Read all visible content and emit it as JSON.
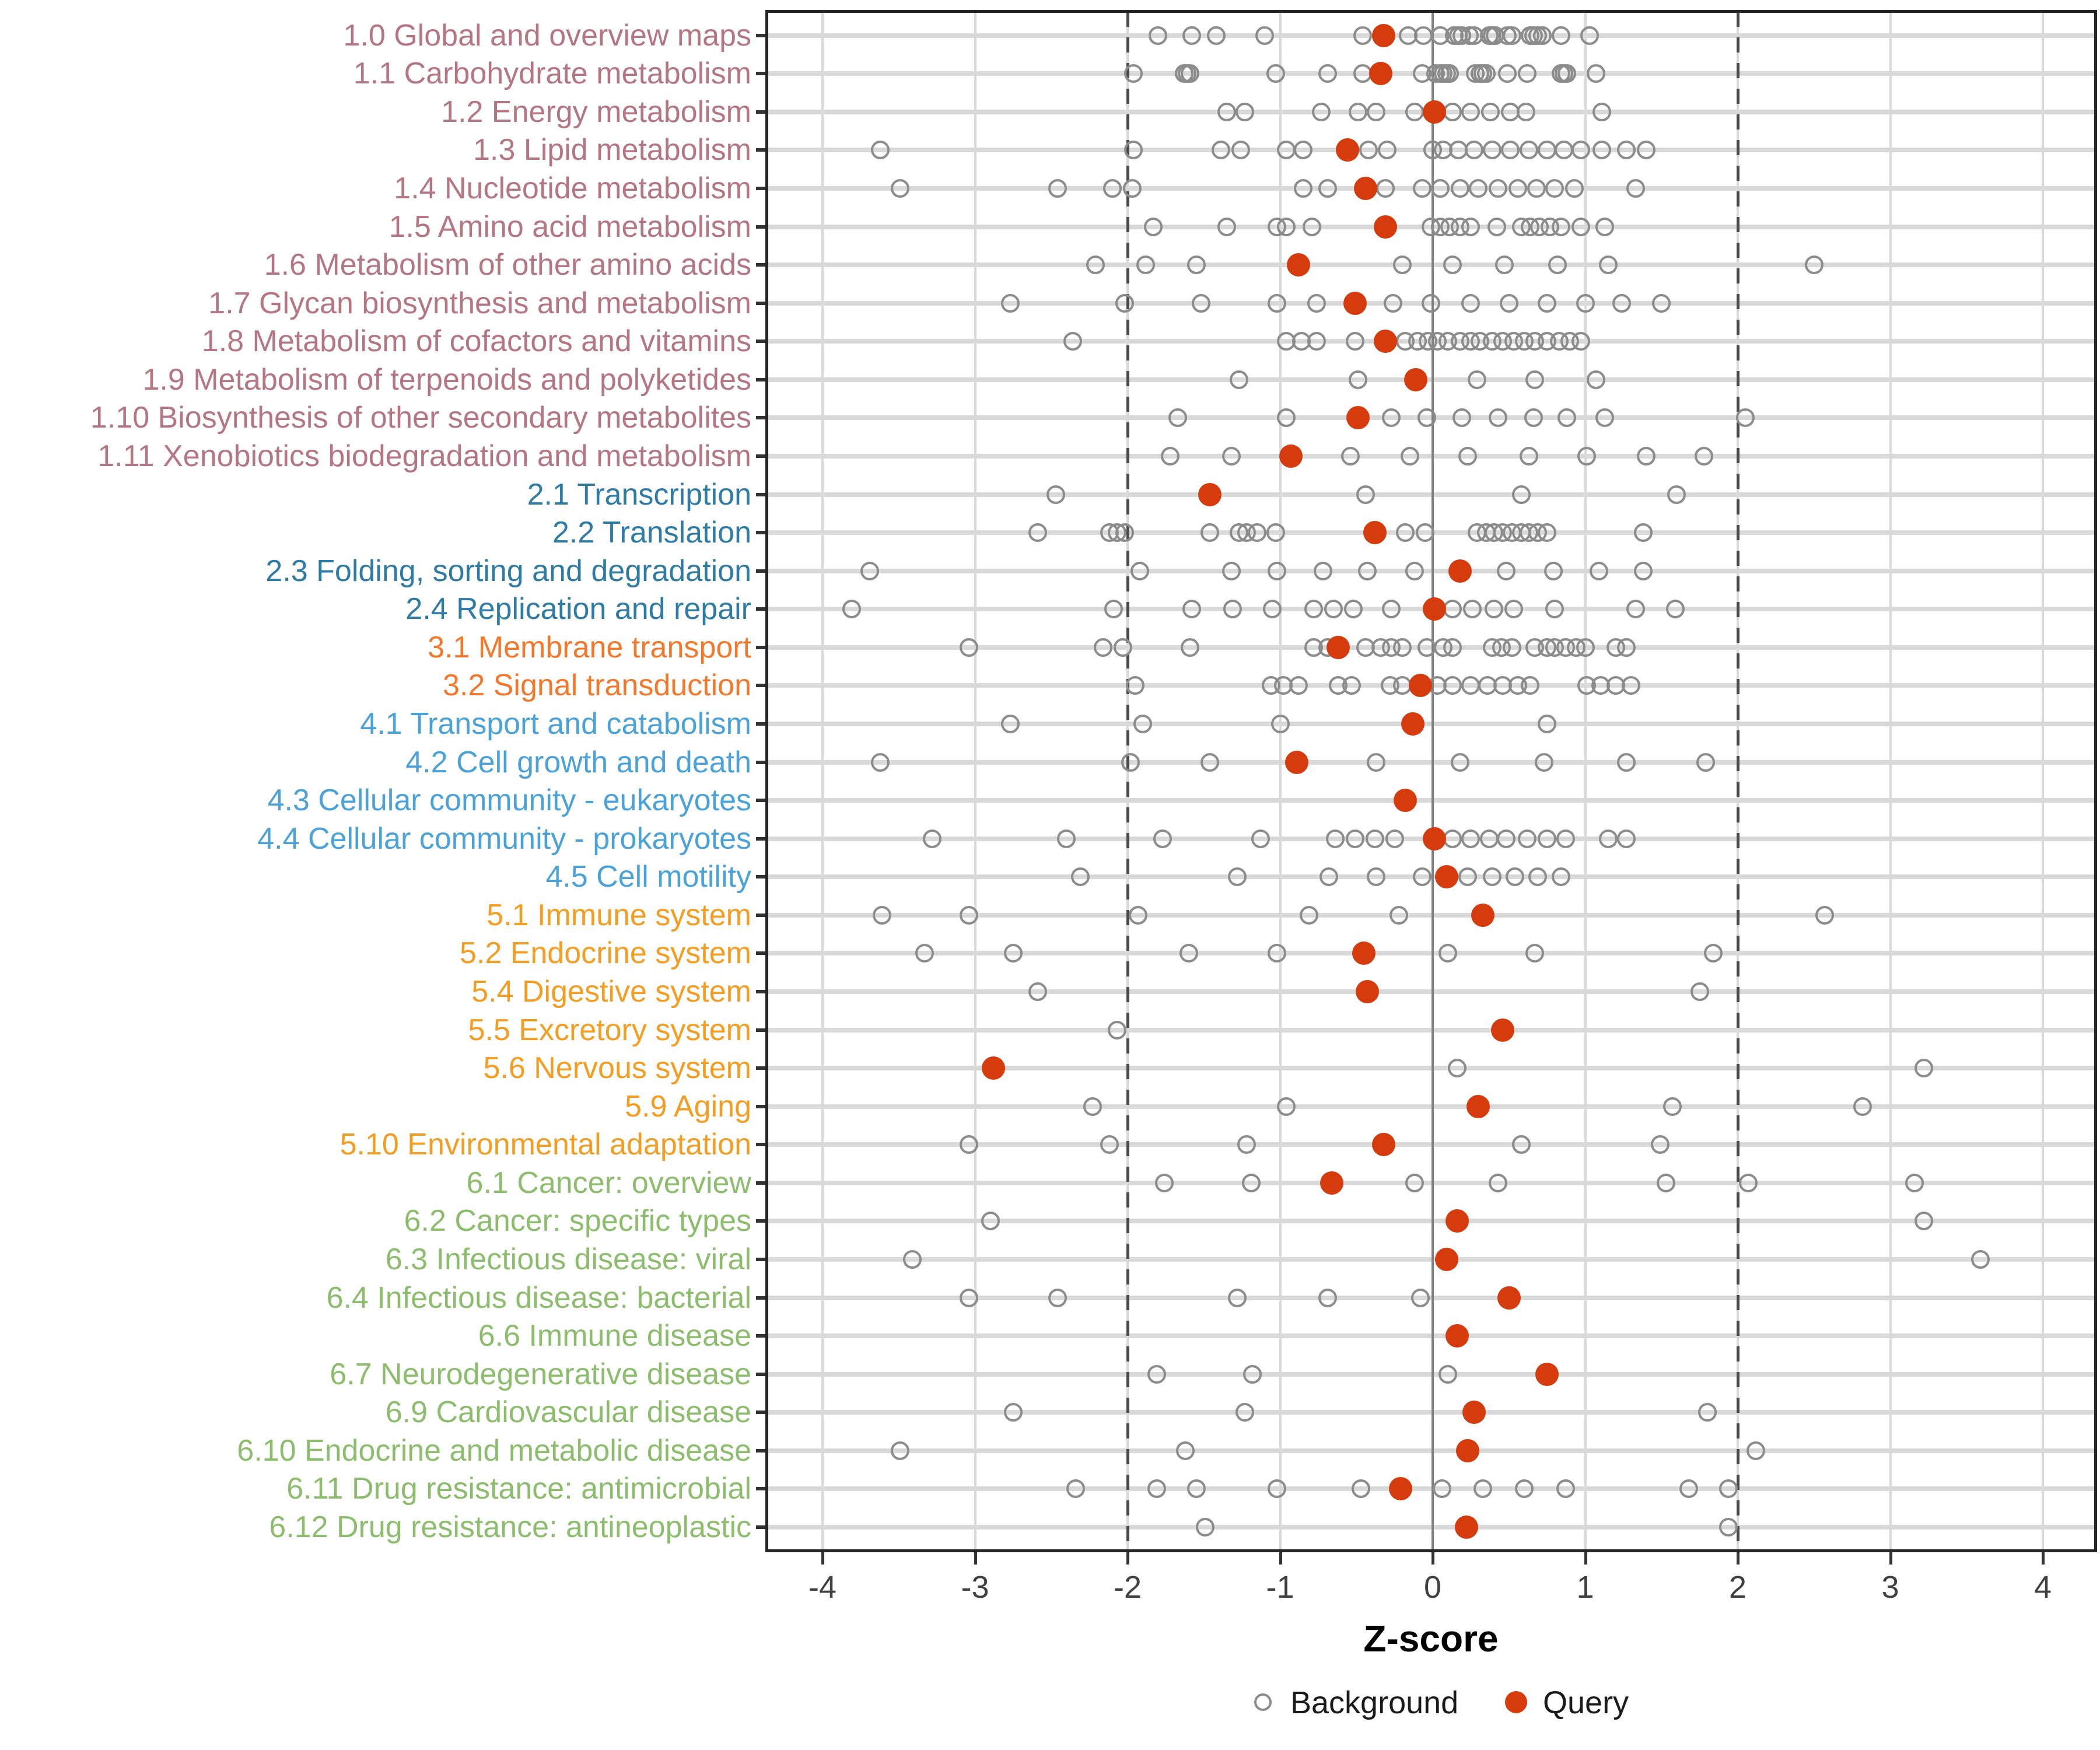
{
  "chart_data": {
    "type": "scatter",
    "title": "",
    "xlabel": "Z-score",
    "ylabel": "",
    "xlim": [
      -4.4,
      4.35
    ],
    "x_ticks": [
      -4,
      -3,
      -2,
      -1,
      0,
      1,
      2,
      3,
      4
    ],
    "grid": true,
    "reference_lines": {
      "solid_at": 0,
      "dashed_at": [
        -2,
        2
      ]
    },
    "legend_position": "bottom",
    "legend": [
      {
        "label": "Background",
        "marker": "open-gray-circle",
        "color": "#8c8c8c"
      },
      {
        "label": "Query",
        "marker": "filled-red-circle",
        "color": "#d63b0e"
      }
    ],
    "group_colors": {
      "metabolism": "#b57683",
      "genetic_information_processing": "#2e7ba5",
      "environmental_information_processing": "#f4772a",
      "cellular_processes": "#4aa2d9",
      "organismal_systems": "#f59d20",
      "human_diseases": "#8cbd6d"
    },
    "series": [
      {
        "label": "1.0 Global and overview maps",
        "group": "metabolism",
        "query": -0.32,
        "background": [
          -1.8,
          -1.58,
          -1.42,
          -1.1,
          -0.46,
          -0.16,
          -0.06,
          0.05,
          0.14,
          0.17,
          0.19,
          0.24,
          0.27,
          0.37,
          0.39,
          0.41,
          0.49,
          0.52,
          0.64,
          0.66,
          0.69,
          0.72,
          0.84,
          1.03
        ]
      },
      {
        "label": "1.1 Carbohydrate metabolism",
        "group": "metabolism",
        "query": -0.34,
        "background": [
          -1.96,
          -1.63,
          -1.61,
          -1.59,
          -1.03,
          -0.69,
          -0.46,
          -0.07,
          0.02,
          0.05,
          0.07,
          0.09,
          0.11,
          0.28,
          0.31,
          0.33,
          0.35,
          0.49,
          0.62,
          0.84,
          0.86,
          0.88,
          1.07
        ]
      },
      {
        "label": "1.2 Energy metabolism",
        "group": "metabolism",
        "query": 0.01,
        "background": [
          -1.35,
          -1.23,
          -0.73,
          -0.49,
          -0.37,
          -0.12,
          0.13,
          0.25,
          0.38,
          0.51,
          0.61,
          1.11
        ]
      },
      {
        "label": "1.3 Lipid metabolism",
        "group": "metabolism",
        "query": -0.56,
        "background": [
          -3.62,
          -1.96,
          -1.39,
          -1.26,
          -0.96,
          -0.85,
          -0.42,
          -0.3,
          0.0,
          0.07,
          0.17,
          0.27,
          0.39,
          0.51,
          0.63,
          0.75,
          0.86,
          0.97,
          1.11,
          1.27,
          1.4
        ]
      },
      {
        "label": "1.4 Nucleotide metabolism",
        "group": "metabolism",
        "query": -0.44,
        "background": [
          -3.49,
          -2.46,
          -2.1,
          -1.97,
          -0.85,
          -0.69,
          -0.31,
          -0.07,
          0.05,
          0.18,
          0.3,
          0.43,
          0.56,
          0.68,
          0.8,
          0.93,
          1.33
        ]
      },
      {
        "label": "1.5 Amino acid metabolism",
        "group": "metabolism",
        "query": -0.31,
        "background": [
          -1.83,
          -1.35,
          -1.02,
          -0.96,
          -0.79,
          -0.01,
          0.05,
          0.11,
          0.18,
          0.25,
          0.42,
          0.58,
          0.64,
          0.7,
          0.77,
          0.84,
          0.97,
          1.13
        ]
      },
      {
        "label": "1.6 Metabolism of other amino acids",
        "group": "metabolism",
        "query": -0.88,
        "background": [
          -2.21,
          -1.88,
          -1.55,
          -0.2,
          0.13,
          0.47,
          0.82,
          1.15,
          2.5
        ]
      },
      {
        "label": "1.7 Glycan biosynthesis and metabolism",
        "group": "metabolism",
        "query": -0.51,
        "background": [
          -2.77,
          -2.02,
          -1.52,
          -1.02,
          -0.76,
          -0.26,
          -0.01,
          0.25,
          0.5,
          0.75,
          1.0,
          1.24,
          1.5
        ]
      },
      {
        "label": "1.8 Metabolism of cofactors and vitamins",
        "group": "metabolism",
        "query": -0.31,
        "background": [
          -2.36,
          -0.96,
          -0.86,
          -0.76,
          -0.51,
          -0.18,
          -0.1,
          -0.03,
          0.03,
          0.1,
          0.18,
          0.25,
          0.31,
          0.39,
          0.46,
          0.53,
          0.6,
          0.67,
          0.75,
          0.83,
          0.9,
          0.97
        ]
      },
      {
        "label": "1.9 Metabolism of terpenoids and polyketides",
        "group": "metabolism",
        "query": -0.11,
        "background": [
          -1.27,
          -0.49,
          0.29,
          0.67,
          1.07
        ]
      },
      {
        "label": "1.10 Biosynthesis of other secondary metabolites",
        "group": "metabolism",
        "query": -0.49,
        "background": [
          -1.67,
          -0.96,
          -0.27,
          -0.04,
          0.19,
          0.43,
          0.66,
          0.88,
          1.13,
          2.05
        ]
      },
      {
        "label": "1.11 Xenobiotics biodegradation and metabolism",
        "group": "metabolism",
        "query": -0.93,
        "background": [
          -1.72,
          -1.32,
          -0.54,
          -0.15,
          0.23,
          0.63,
          1.01,
          1.4,
          1.78
        ]
      },
      {
        "label": "2.1 Transcription",
        "group": "genetic_information_processing",
        "query": -1.46,
        "background": [
          -2.47,
          -0.44,
          0.58,
          1.6
        ]
      },
      {
        "label": "2.2 Translation",
        "group": "genetic_information_processing",
        "query": -0.38,
        "background": [
          -2.59,
          -2.12,
          -2.07,
          -2.02,
          -1.46,
          -1.27,
          -1.22,
          -1.15,
          -1.03,
          -0.18,
          -0.05,
          0.29,
          0.35,
          0.4,
          0.46,
          0.52,
          0.58,
          0.63,
          0.69,
          0.75,
          1.38
        ]
      },
      {
        "label": "2.3 Folding, sorting and degradation",
        "group": "genetic_information_processing",
        "query": 0.18,
        "background": [
          -3.69,
          -1.92,
          -1.32,
          -1.02,
          -0.72,
          -0.43,
          -0.12,
          0.48,
          0.79,
          1.09,
          1.38
        ]
      },
      {
        "label": "2.4 Replication and repair",
        "group": "genetic_information_processing",
        "query": 0.01,
        "background": [
          -3.81,
          -2.09,
          -1.58,
          -1.31,
          -1.05,
          -0.78,
          -0.65,
          -0.52,
          -0.27,
          0.13,
          0.26,
          0.4,
          0.53,
          0.8,
          1.33,
          1.59
        ]
      },
      {
        "label": "3.1 Membrane transport",
        "group": "environmental_information_processing",
        "query": -0.62,
        "background": [
          -3.04,
          -2.16,
          -2.03,
          -1.59,
          -0.78,
          -0.69,
          -0.44,
          -0.34,
          -0.27,
          -0.2,
          -0.04,
          0.07,
          0.13,
          0.39,
          0.45,
          0.52,
          0.67,
          0.75,
          0.8,
          0.87,
          0.94,
          1.0,
          1.2,
          1.27
        ]
      },
      {
        "label": "3.2 Signal transduction",
        "group": "environmental_information_processing",
        "query": -0.08,
        "background": [
          -1.95,
          -1.06,
          -0.98,
          -0.88,
          -0.62,
          -0.53,
          -0.28,
          -0.2,
          0.03,
          0.13,
          0.25,
          0.36,
          0.46,
          0.56,
          0.64,
          1.01,
          1.1,
          1.2,
          1.3
        ]
      },
      {
        "label": "4.1 Transport and catabolism",
        "group": "cellular_processes",
        "query": -0.13,
        "background": [
          -2.77,
          -1.9,
          -1.0,
          0.75
        ]
      },
      {
        "label": "4.2 Cell growth and death",
        "group": "cellular_processes",
        "query": -0.89,
        "background": [
          -3.62,
          -1.98,
          -1.46,
          -0.37,
          0.18,
          0.73,
          1.27,
          1.79
        ]
      },
      {
        "label": "4.3 Cellular community - eukaryotes",
        "group": "cellular_processes",
        "query": -0.18,
        "background": []
      },
      {
        "label": "4.4 Cellular community - prokaryotes",
        "group": "cellular_processes",
        "query": 0.01,
        "background": [
          -3.28,
          -2.4,
          -1.77,
          -1.13,
          -0.64,
          -0.51,
          -0.38,
          -0.25,
          0.13,
          0.25,
          0.37,
          0.48,
          0.62,
          0.75,
          0.87,
          1.15,
          1.27
        ]
      },
      {
        "label": "4.5 Cell motility",
        "group": "cellular_processes",
        "query": 0.09,
        "background": [
          -2.31,
          -1.28,
          -0.68,
          -0.37,
          -0.07,
          0.23,
          0.39,
          0.54,
          0.69,
          0.84
        ]
      },
      {
        "label": "5.1 Immune system",
        "group": "organismal_systems",
        "query": 0.33,
        "background": [
          -3.61,
          -3.04,
          -1.93,
          -0.81,
          -0.22,
          2.57
        ]
      },
      {
        "label": "5.2 Endocrine system",
        "group": "organismal_systems",
        "query": -0.45,
        "background": [
          -3.33,
          -2.75,
          -1.6,
          -1.02,
          0.1,
          0.67,
          1.84
        ]
      },
      {
        "label": "5.4 Digestive system",
        "group": "organismal_systems",
        "query": -0.43,
        "background": [
          -2.59,
          1.75
        ]
      },
      {
        "label": "5.5 Excretory system",
        "group": "organismal_systems",
        "query": 0.46,
        "background": [
          -2.07
        ]
      },
      {
        "label": "5.6 Nervous system",
        "group": "organismal_systems",
        "query": -2.88,
        "background": [
          0.16,
          3.22
        ]
      },
      {
        "label": "5.9 Aging",
        "group": "organismal_systems",
        "query": 0.3,
        "background": [
          -2.23,
          -0.96,
          1.57,
          2.82
        ]
      },
      {
        "label": "5.10 Environmental adaptation",
        "group": "organismal_systems",
        "query": -0.32,
        "background": [
          -3.04,
          -2.12,
          -1.22,
          0.58,
          1.49
        ]
      },
      {
        "label": "6.1 Cancer: overview",
        "group": "human_diseases",
        "query": -0.66,
        "background": [
          -1.76,
          -1.19,
          -0.12,
          0.43,
          1.53,
          2.07,
          3.16
        ]
      },
      {
        "label": "6.2 Cancer: specific types",
        "group": "human_diseases",
        "query": 0.16,
        "background": [
          -2.9,
          3.22
        ]
      },
      {
        "label": "6.3 Infectious disease: viral",
        "group": "human_diseases",
        "query": 0.09,
        "background": [
          -3.41,
          3.59
        ]
      },
      {
        "label": "6.4 Infectious disease: bacterial",
        "group": "human_diseases",
        "query": 0.5,
        "background": [
          -3.04,
          -2.46,
          -1.28,
          -0.69,
          -0.08
        ]
      },
      {
        "label": "6.6 Immune disease",
        "group": "human_diseases",
        "query": 0.16,
        "background": []
      },
      {
        "label": "6.7 Neurodegenerative disease",
        "group": "human_diseases",
        "query": 0.75,
        "background": [
          -1.81,
          -1.18,
          0.1
        ]
      },
      {
        "label": "6.9 Cardiovascular disease",
        "group": "human_diseases",
        "query": 0.27,
        "background": [
          -2.75,
          -1.23,
          1.8
        ]
      },
      {
        "label": "6.10 Endocrine and metabolic disease",
        "group": "human_diseases",
        "query": 0.23,
        "background": [
          -3.49,
          -1.62,
          2.12
        ]
      },
      {
        "label": "6.11 Drug resistance: antimicrobial",
        "group": "human_diseases",
        "query": -0.21,
        "background": [
          -2.34,
          -1.81,
          -1.55,
          -1.02,
          -0.47,
          0.06,
          0.33,
          0.6,
          0.87,
          1.68,
          1.94
        ]
      },
      {
        "label": "6.12 Drug resistance: antineoplastic",
        "group": "human_diseases",
        "query": 0.22,
        "background": [
          -1.49,
          1.94
        ]
      }
    ]
  }
}
